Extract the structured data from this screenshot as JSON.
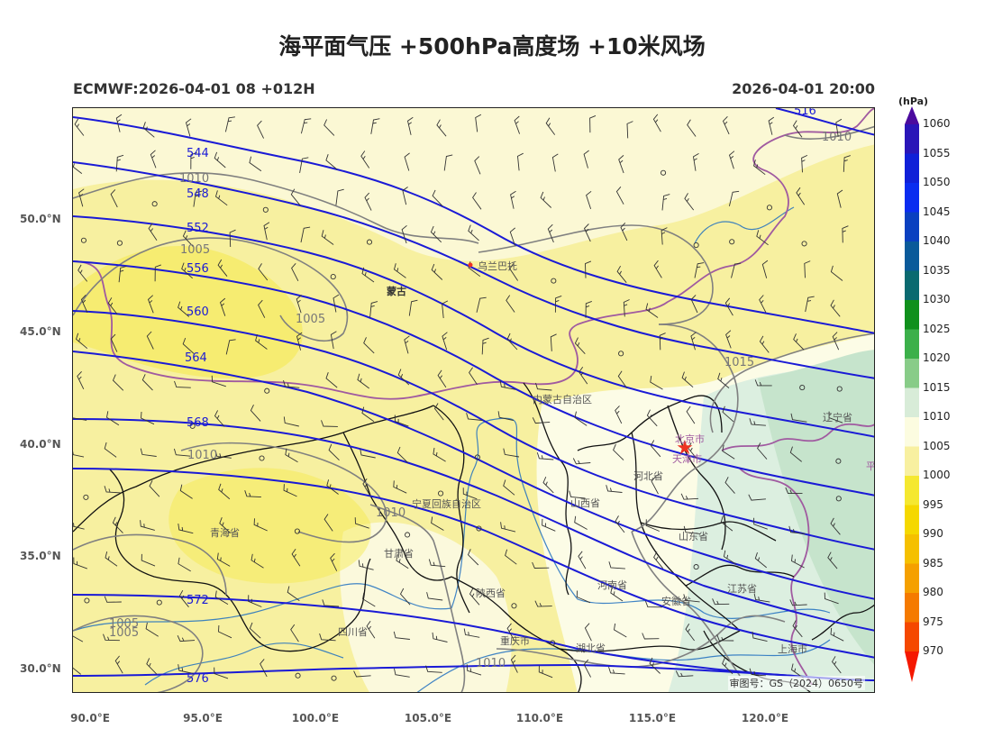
{
  "title": "海平面气压 +500hPa高度场 +10米风场",
  "model_run": "ECMWF:2026-04-01 08 +012H",
  "valid_time": "2026-04-01 20:00",
  "colorbar": {
    "unit": "(hPa)",
    "levels": [
      "1060",
      "1055",
      "1050",
      "1045",
      "1040",
      "1035",
      "1030",
      "1025",
      "1020",
      "1015",
      "1010",
      "1005",
      "1000",
      "995",
      "990",
      "985",
      "980",
      "975",
      "970"
    ],
    "colors": [
      "#4b0b9e",
      "#2a16b8",
      "#1020d8",
      "#0a2cf0",
      "#0a40c0",
      "#0a5a9a",
      "#0a6a70",
      "#10901c",
      "#3cb04a",
      "#88cc88",
      "#d8ecd8",
      "#fcfce0",
      "#f8f0a0",
      "#f5e830",
      "#f5d800",
      "#f5c000",
      "#f5a000",
      "#f57a00",
      "#f54800",
      "#f51800"
    ]
  },
  "axes": {
    "lat_labels": [
      "50.0°N",
      "45.0°N",
      "40.0°N",
      "35.0°N",
      "30.0°N"
    ],
    "lon_labels": [
      "90.0°E",
      "95.0°E",
      "100.0°E",
      "105.0°E",
      "110.0°E",
      "115.0°E",
      "120.0°E"
    ]
  },
  "contour_labels": {
    "height": [
      "544",
      "548",
      "552",
      "556",
      "560",
      "564",
      "568",
      "572",
      "576",
      "516"
    ],
    "pressure": [
      "1010",
      "1005",
      "1005",
      "1010",
      "1010",
      "1015",
      "1010",
      "1005",
      "1005",
      "1010"
    ]
  },
  "place_labels": [
    "乌兰巴托",
    "蒙古",
    "内蒙古自治区",
    "北京市",
    "天津市",
    "辽宁省",
    "河北省",
    "山西省",
    "宁夏回族自治区",
    "甘肃省",
    "青海省",
    "山东省",
    "河南省",
    "陕西省",
    "安徽省",
    "江苏省",
    "四川省",
    "重庆市",
    "湖北省",
    "上海市",
    "平"
  ],
  "map_credit": "审图号：GS（2024）0650号",
  "colors": {
    "height_contour": "#1a1ad6",
    "pressure_contour": "#808080",
    "border_intl": "#a05aa0",
    "border_prov": "#000000",
    "river": "#2070c0",
    "capital_marker": "#ee3322"
  }
}
